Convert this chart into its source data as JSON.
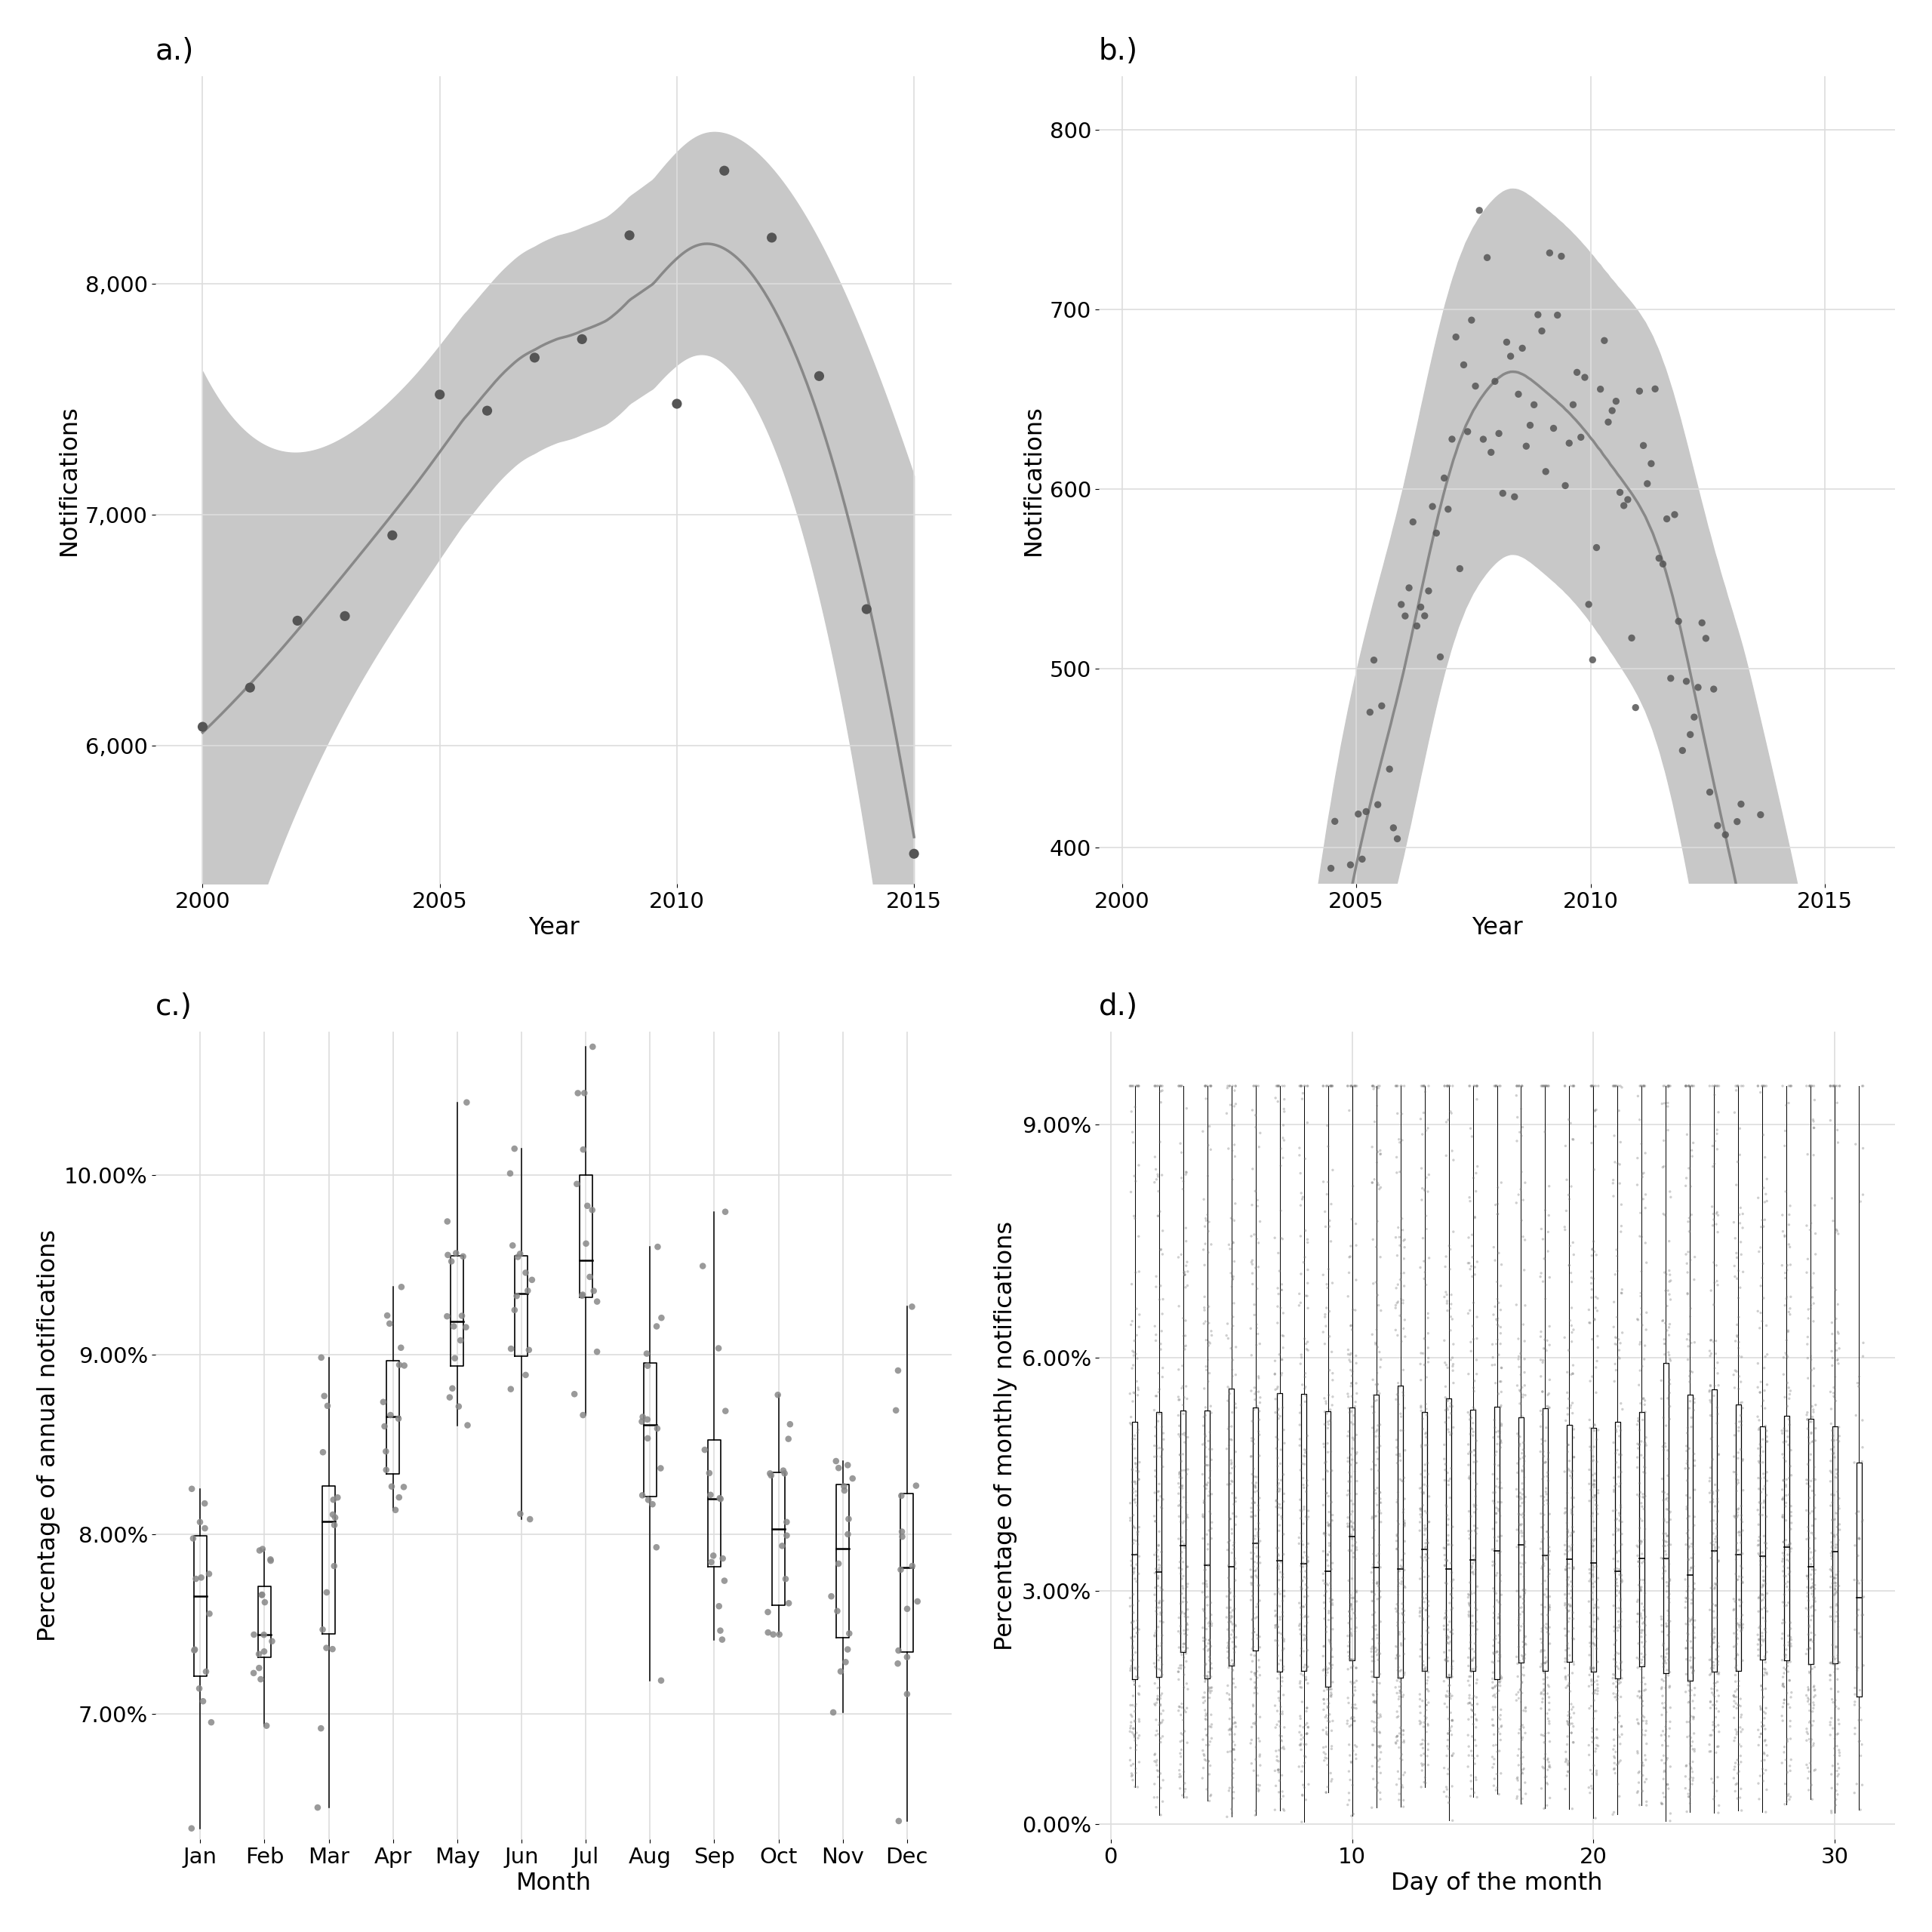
{
  "panel_a": {
    "title": "a.)",
    "xlabel": "Year",
    "ylabel": "Notifications",
    "years": [
      2000,
      2001,
      2002,
      2003,
      2004,
      2005,
      2006,
      2007,
      2008,
      2009,
      2010,
      2011,
      2012,
      2013,
      2014,
      2015
    ],
    "values": [
      6080,
      6250,
      6540,
      6560,
      6910,
      7520,
      7450,
      7680,
      7760,
      8210,
      7480,
      8490,
      8200,
      7600,
      6590,
      5530
    ],
    "ylim": [
      5400,
      8900
    ],
    "xlim": [
      1999.0,
      2015.8
    ],
    "yticks": [
      6000,
      7000,
      8000
    ],
    "xticks": [
      2000,
      2005,
      2010,
      2015
    ]
  },
  "panel_b": {
    "title": "b.)",
    "xlabel": "Year",
    "ylabel": "Notifications",
    "ylim": [
      380,
      830
    ],
    "xlim": [
      1999.5,
      2016.5
    ],
    "yticks": [
      400,
      500,
      600,
      700,
      800
    ],
    "xticks": [
      2000,
      2005,
      2010,
      2015
    ]
  },
  "panel_c": {
    "title": "c.)",
    "xlabel": "Month",
    "ylabel": "Percentage of annual notifications",
    "months": [
      "Jan",
      "Feb",
      "Mar",
      "Apr",
      "May",
      "Jun",
      "Jul",
      "Aug",
      "Sep",
      "Oct",
      "Nov",
      "Dec"
    ],
    "means": [
      0.0763,
      0.0748,
      0.0805,
      0.0875,
      0.093,
      0.0952,
      0.0958,
      0.0843,
      0.0828,
      0.0802,
      0.0778,
      0.0792
    ],
    "spreads": [
      0.0048,
      0.003,
      0.0065,
      0.0045,
      0.0055,
      0.0055,
      0.0065,
      0.0055,
      0.0058,
      0.005,
      0.0048,
      0.0062
    ],
    "ylim": [
      0.063,
      0.108
    ],
    "yticks": [
      0.07,
      0.08,
      0.09,
      0.1
    ]
  },
  "panel_d": {
    "title": "d.)",
    "xlabel": "Day of the month",
    "ylabel": "Percentage of monthly notifications",
    "ylim": [
      -0.002,
      0.102
    ],
    "xlim": [
      -0.5,
      32.5
    ],
    "yticks": [
      0.0,
      0.03,
      0.06,
      0.09
    ],
    "xticks": [
      0,
      10,
      20,
      30
    ]
  },
  "dot_color": "#555555",
  "line_color": "#888888",
  "ci_color": "#c8c8c8",
  "background_color": "#ffffff",
  "grid_color": "#dddddd"
}
